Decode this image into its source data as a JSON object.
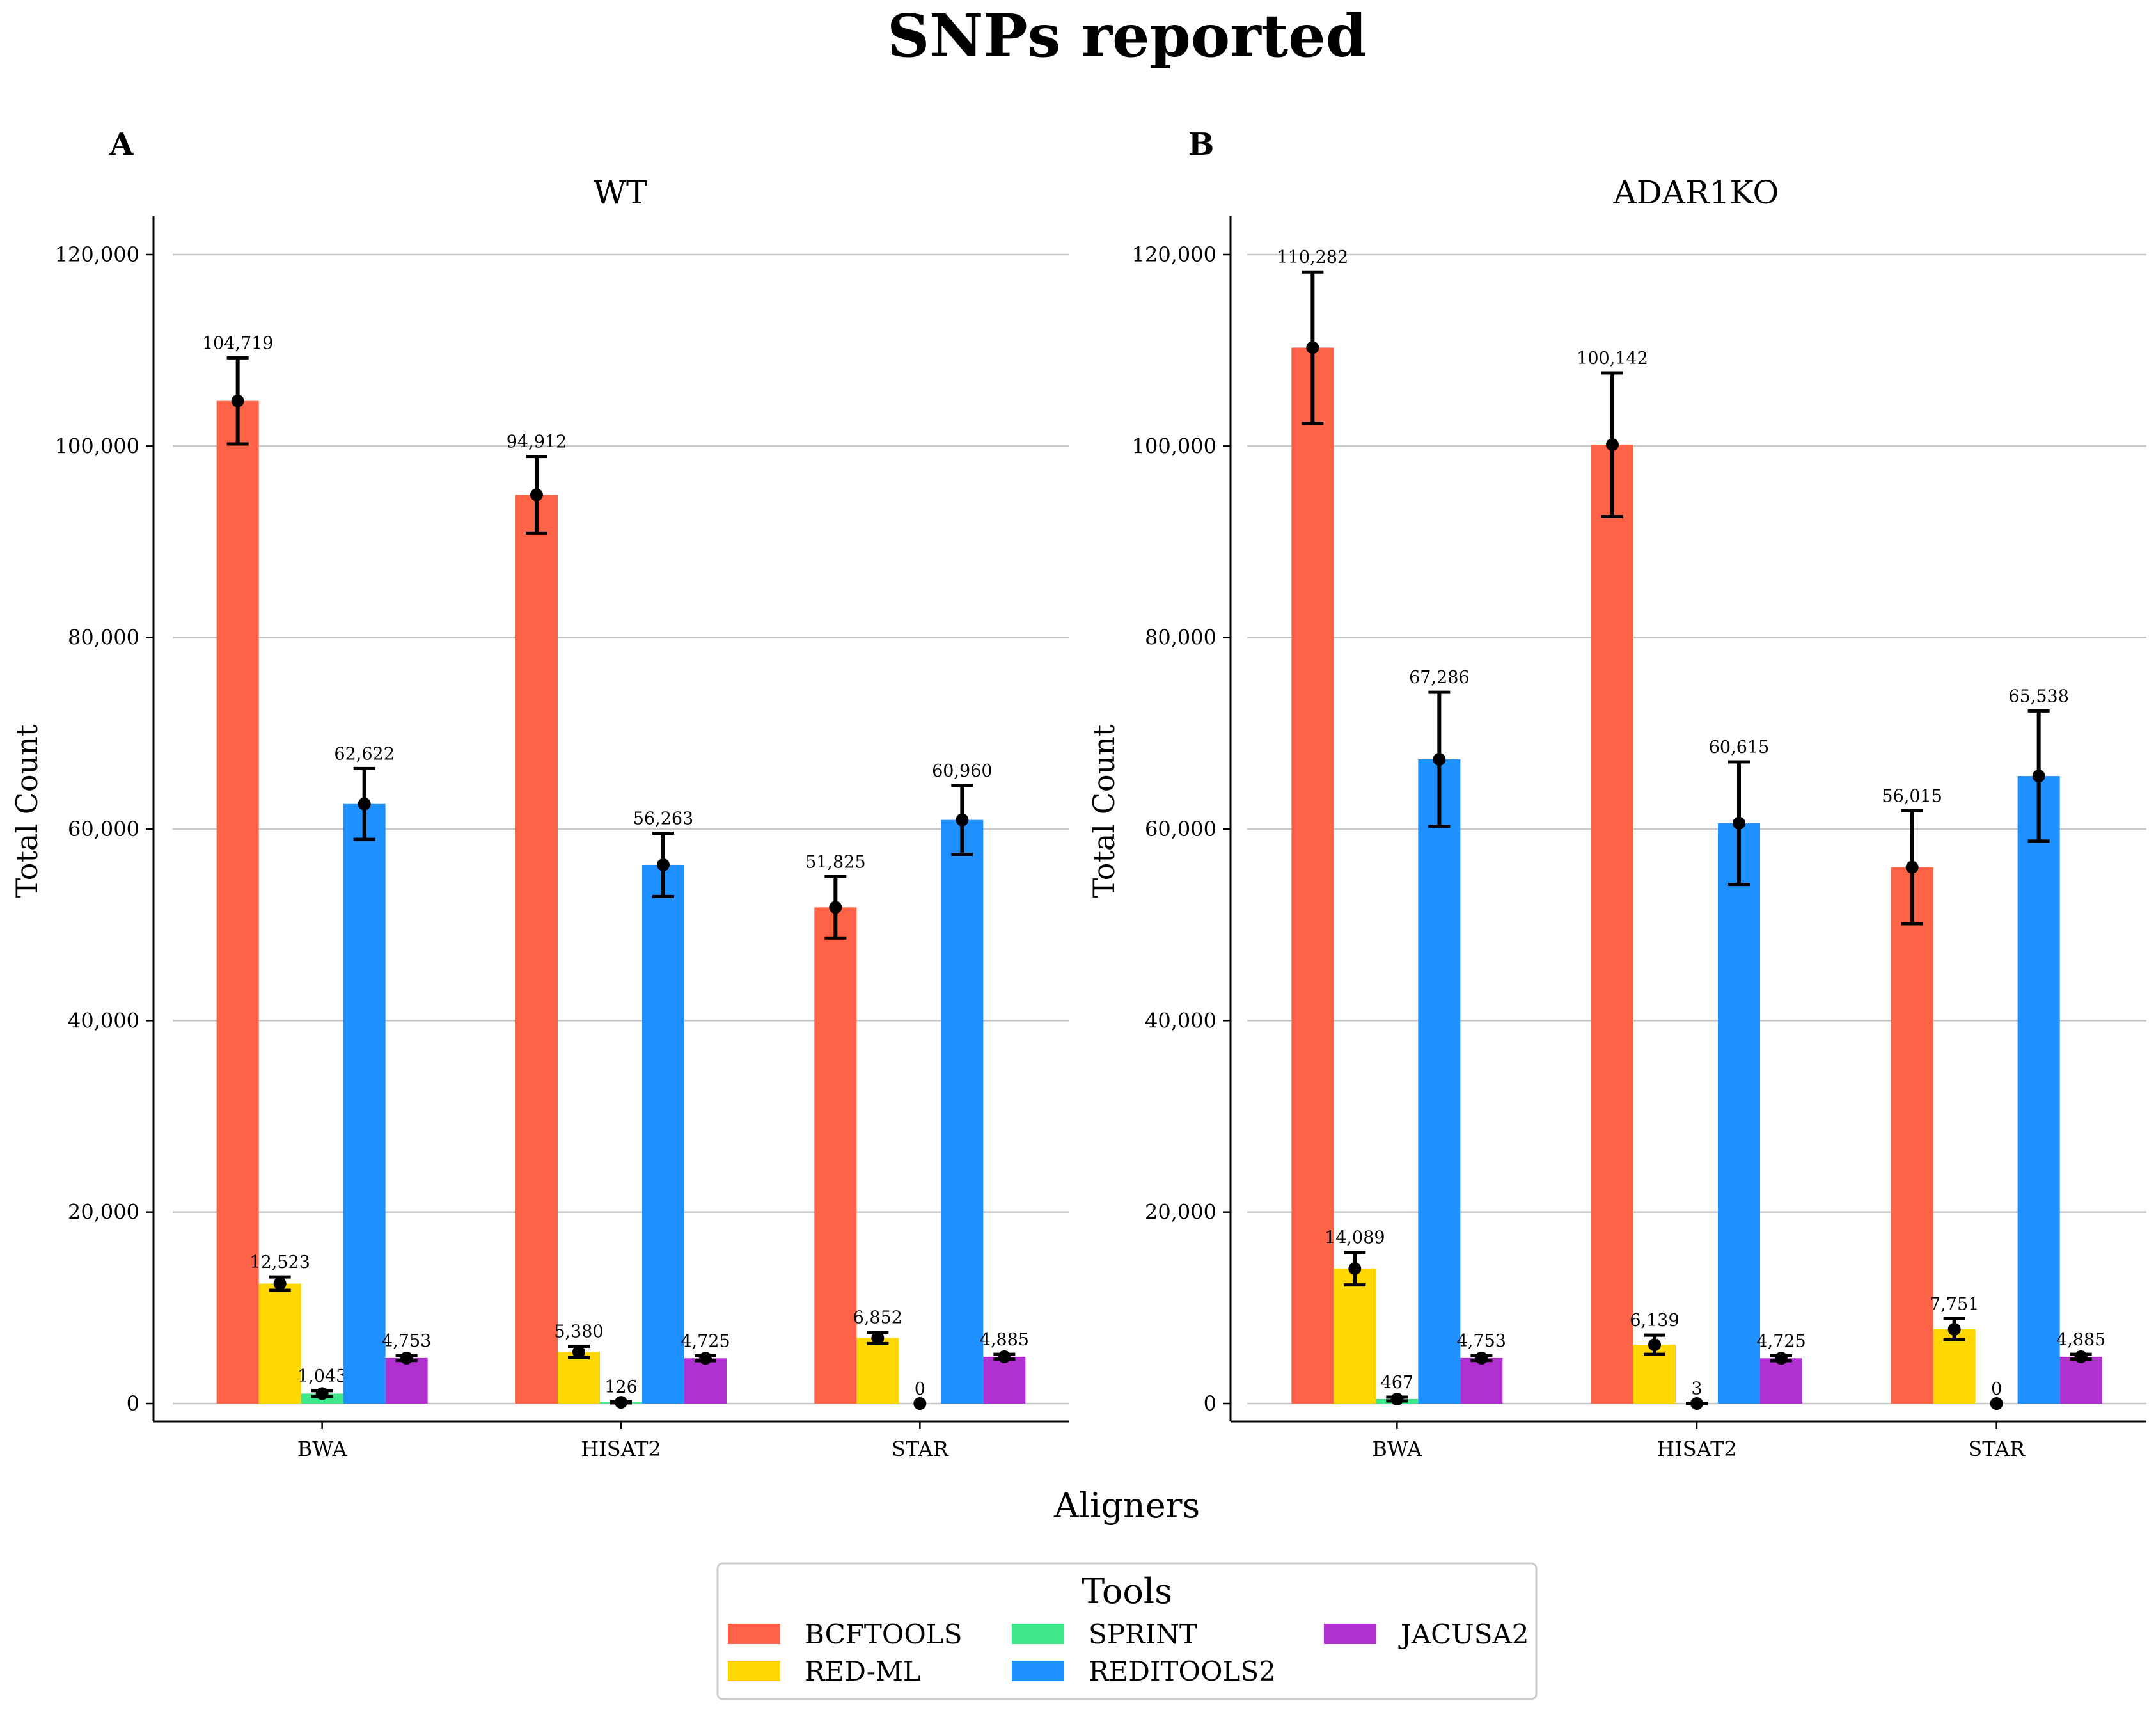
{
  "figure": {
    "title": "SNPs reported",
    "xlabel": "Aligners",
    "legend": {
      "title": "Tools",
      "position": "bottom-center",
      "items": [
        "BCFTOOLS",
        "RED-ML",
        "SPRINT",
        "REDITOOLS2",
        "JACUSA2"
      ]
    }
  },
  "colors": {
    "BCFTOOLS": "#ff6347",
    "RED-ML": "#ffd700",
    "SPRINT": "#3ee88a",
    "REDITOOLS2": "#1e90ff",
    "JACUSA2": "#b030d0"
  },
  "chart_data": [
    {
      "type": "bar",
      "panel_label": "A",
      "title": "WT",
      "ylabel": "Total Count",
      "ylim": [
        0,
        120000
      ],
      "yticks": [
        "0",
        "20,000",
        "40,000",
        "60,000",
        "80,000",
        "100,000",
        "120,000"
      ],
      "grid": true,
      "categories": [
        "BWA",
        "HISAT2",
        "STAR"
      ],
      "series": [
        {
          "name": "BCFTOOLS",
          "values": [
            104719,
            94912,
            51825
          ],
          "labels": [
            "104,719",
            "94,912",
            "51,825"
          ],
          "err": [
            4500,
            4000,
            3200
          ]
        },
        {
          "name": "RED-ML",
          "values": [
            12523,
            5380,
            6852
          ],
          "labels": [
            "12,523",
            "5,380",
            "6,852"
          ],
          "err": [
            700,
            600,
            600
          ]
        },
        {
          "name": "SPRINT",
          "values": [
            1043,
            126,
            0
          ],
          "labels": [
            "1,043",
            "126",
            "0"
          ],
          "err": [
            300,
            60,
            0
          ]
        },
        {
          "name": "REDITOOLS2",
          "values": [
            62622,
            56263,
            60960
          ],
          "labels": [
            "62,622",
            "56,263",
            "60,960"
          ],
          "err": [
            3700,
            3300,
            3600
          ]
        },
        {
          "name": "JACUSA2",
          "values": [
            4753,
            4725,
            4885
          ],
          "labels": [
            "4,753",
            "4,725",
            "4,885"
          ],
          "err": [
            250,
            250,
            250
          ]
        }
      ]
    },
    {
      "type": "bar",
      "panel_label": "B",
      "title": "ADAR1KO",
      "ylabel": "Total Count",
      "ylim": [
        0,
        120000
      ],
      "yticks": [
        "0",
        "20,000",
        "40,000",
        "60,000",
        "80,000",
        "100,000",
        "120,000"
      ],
      "grid": true,
      "categories": [
        "BWA",
        "HISAT2",
        "STAR"
      ],
      "series": [
        {
          "name": "BCFTOOLS",
          "values": [
            110282,
            100142,
            56015
          ],
          "labels": [
            "110,282",
            "100,142",
            "56,015"
          ],
          "err": [
            7900,
            7500,
            5900
          ]
        },
        {
          "name": "RED-ML",
          "values": [
            14089,
            6139,
            7751
          ],
          "labels": [
            "14,089",
            "6,139",
            "7,751"
          ],
          "err": [
            1700,
            1000,
            1100
          ]
        },
        {
          "name": "SPRINT",
          "values": [
            467,
            3,
            0
          ],
          "labels": [
            "467",
            "3",
            "0"
          ],
          "err": [
            200,
            20,
            0
          ]
        },
        {
          "name": "REDITOOLS2",
          "values": [
            67286,
            60615,
            65538
          ],
          "labels": [
            "67,286",
            "60,615",
            "65,538"
          ],
          "err": [
            7000,
            6400,
            6800
          ]
        },
        {
          "name": "JACUSA2",
          "values": [
            4753,
            4725,
            4885
          ],
          "labels": [
            "4,753",
            "4,725",
            "4,885"
          ],
          "err": [
            250,
            250,
            250
          ]
        }
      ]
    }
  ]
}
